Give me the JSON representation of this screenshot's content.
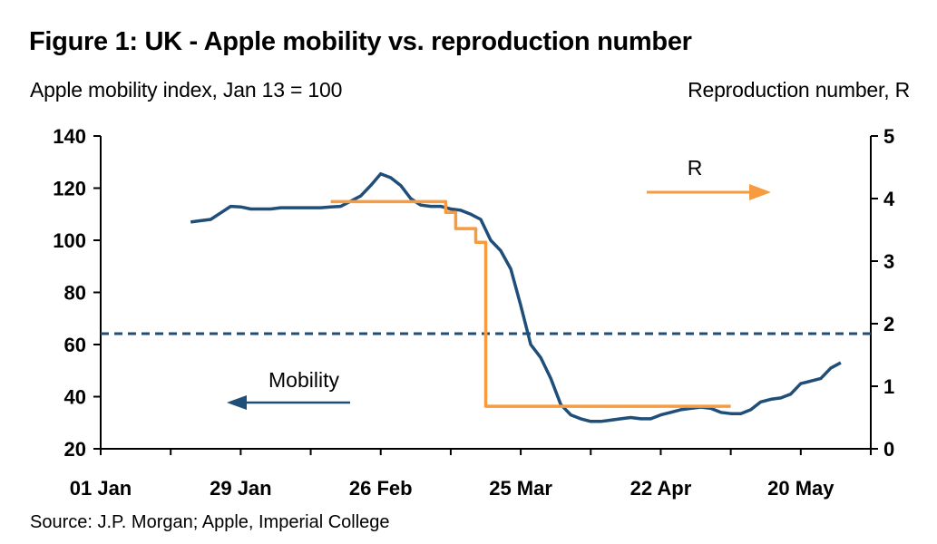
{
  "title": "Figure 1: UK - Apple mobility vs. reproduction number",
  "left_axis_title": "Apple mobility index, Jan 13 = 100",
  "right_axis_title": "Reproduction number, R",
  "source": "Source: J.P. Morgan; Apple, Imperial College",
  "colors": {
    "mobility": "#1f4e79",
    "r": "#f79b3e",
    "reference": "#1f4e79",
    "axis": "#000000"
  },
  "chart_data": {
    "type": "line",
    "title": "Figure 1: UK - Apple mobility vs. reproduction number",
    "xlabel": "",
    "ylabel": "Apple mobility index, Jan 13 = 100",
    "y2label": "Reproduction number, R",
    "xlim": [
      "2020-01-01",
      "2020-06-03"
    ],
    "ylim": [
      20,
      140
    ],
    "y2lim": [
      0,
      5
    ],
    "x_tick_labels": [
      "01 Jan",
      "29 Jan",
      "26 Feb",
      "25 Mar",
      "22 Apr",
      "20 May"
    ],
    "y_tick_labels": [
      "20",
      "40",
      "60",
      "80",
      "100",
      "120",
      "140"
    ],
    "y2_tick_labels": [
      "0",
      "1",
      "2",
      "3",
      "4",
      "5"
    ],
    "grid": false,
    "annotations": [
      {
        "text": "Mobility",
        "arrow": "left",
        "axis": "left"
      },
      {
        "text": "R",
        "arrow": "right",
        "axis": "right"
      }
    ],
    "reference_line": {
      "axis": "right",
      "value": 1.84,
      "style": "dashed"
    },
    "series": [
      {
        "name": "Mobility",
        "axis": "left",
        "x": [
          "2020-01-19",
          "2020-01-21",
          "2020-01-23",
          "2020-01-25",
          "2020-01-27",
          "2020-01-29",
          "2020-01-31",
          "2020-02-02",
          "2020-02-04",
          "2020-02-06",
          "2020-02-08",
          "2020-02-10",
          "2020-02-12",
          "2020-02-14",
          "2020-02-16",
          "2020-02-18",
          "2020-02-20",
          "2020-02-22",
          "2020-02-24",
          "2020-02-26",
          "2020-02-28",
          "2020-03-01",
          "2020-03-03",
          "2020-03-05",
          "2020-03-07",
          "2020-03-09",
          "2020-03-11",
          "2020-03-13",
          "2020-03-15",
          "2020-03-17",
          "2020-03-19",
          "2020-03-21",
          "2020-03-23",
          "2020-03-25",
          "2020-03-27",
          "2020-03-29",
          "2020-03-31",
          "2020-04-02",
          "2020-04-04",
          "2020-04-06",
          "2020-04-08",
          "2020-04-10",
          "2020-04-12",
          "2020-04-14",
          "2020-04-16",
          "2020-04-18",
          "2020-04-20",
          "2020-04-22",
          "2020-04-24",
          "2020-04-26",
          "2020-04-28",
          "2020-04-30",
          "2020-05-02",
          "2020-05-04",
          "2020-05-06",
          "2020-05-08",
          "2020-05-10",
          "2020-05-12",
          "2020-05-14",
          "2020-05-16",
          "2020-05-18",
          "2020-05-20",
          "2020-05-22",
          "2020-05-24",
          "2020-05-26",
          "2020-05-28"
        ],
        "values": [
          107,
          107.5,
          108,
          110.5,
          113,
          112.8,
          112,
          112,
          112,
          112.5,
          112.5,
          112.5,
          112.5,
          112.5,
          112.8,
          113,
          115,
          117,
          121,
          125.5,
          124,
          121,
          116,
          113.5,
          113,
          113,
          112,
          111.5,
          110,
          108,
          100,
          96,
          89,
          75,
          60,
          55,
          47,
          37,
          33,
          31.5,
          30.5,
          30.5,
          31,
          31.5,
          32,
          31.5,
          31.5,
          33,
          34,
          35,
          35.5,
          36,
          35.5,
          34,
          33.5,
          33.5,
          35,
          38,
          39,
          39.5,
          41,
          45,
          46,
          47,
          51,
          53
        ]
      },
      {
        "name": "R",
        "axis": "right",
        "x": [
          "2020-02-16",
          "2020-03-10",
          "2020-03-10",
          "2020-03-12",
          "2020-03-12",
          "2020-03-16",
          "2020-03-16",
          "2020-03-17",
          "2020-03-17",
          "2020-03-18",
          "2020-03-18",
          "2020-05-06"
        ],
        "values": [
          3.95,
          3.95,
          3.78,
          3.78,
          3.52,
          3.52,
          3.3,
          3.3,
          3.3,
          3.3,
          0.68,
          0.68
        ]
      }
    ]
  }
}
